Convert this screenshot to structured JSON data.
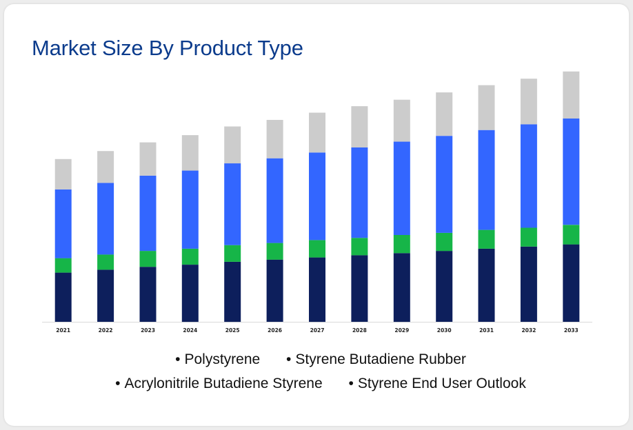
{
  "title": "Market Size By Product Type",
  "chart_data": {
    "type": "bar",
    "stacked": true,
    "title": "Market Size By Product Type",
    "xlabel": "",
    "ylabel": "",
    "ylim": [
      0,
      340
    ],
    "y_axis_visible": false,
    "grid": false,
    "categories": [
      "2021",
      "2022",
      "2023",
      "2024",
      "2025",
      "2026",
      "2027",
      "2028",
      "2029",
      "2030",
      "2031",
      "2032",
      "2033"
    ],
    "series": [
      {
        "name": "Polystyrene",
        "color": "#0d1f5c",
        "values": [
          68,
          72,
          76,
          79,
          83,
          86,
          89,
          92,
          95,
          98,
          101,
          104,
          107
        ]
      },
      {
        "name": "Styrene Butadiene Rubber",
        "color": "#16b548",
        "values": [
          20,
          21,
          22,
          22,
          23,
          23,
          24,
          24,
          25,
          25,
          26,
          26,
          27
        ]
      },
      {
        "name": "Acrylonitrile Butadiene Styrene",
        "color": "#3366ff",
        "values": [
          95,
          99,
          104,
          108,
          113,
          117,
          121,
          125,
          129,
          134,
          138,
          143,
          147
        ]
      },
      {
        "name": "Styrene End User Outlook",
        "color": "#cccccc",
        "values": [
          42,
          44,
          46,
          49,
          51,
          53,
          55,
          57,
          58,
          60,
          62,
          63,
          65
        ]
      }
    ],
    "legend_position": "bottom"
  },
  "legend": {
    "bullet": "•",
    "items": [
      "Polystyrene",
      "Styrene Butadiene Rubber",
      "Acrylonitrile Butadiene Styrene",
      "Styrene End User Outlook"
    ]
  }
}
